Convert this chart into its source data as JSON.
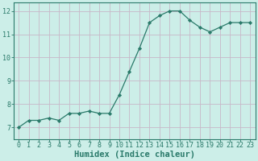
{
  "x": [
    0,
    1,
    2,
    3,
    4,
    5,
    6,
    7,
    8,
    9,
    10,
    11,
    12,
    13,
    14,
    15,
    16,
    17,
    18,
    19,
    20,
    21,
    22,
    23
  ],
  "y": [
    7.0,
    7.3,
    7.3,
    7.4,
    7.3,
    7.6,
    7.6,
    7.7,
    7.6,
    7.6,
    8.4,
    9.4,
    10.4,
    11.5,
    11.8,
    12.0,
    12.0,
    11.6,
    11.3,
    11.1,
    11.3,
    11.5,
    11.5,
    11.5
  ],
  "xlabel": "Humidex (Indice chaleur)",
  "ylim": [
    6.5,
    12.35
  ],
  "xlim": [
    -0.5,
    23.5
  ],
  "yticks": [
    7,
    8,
    9,
    10,
    11,
    12
  ],
  "xtick_labels": [
    "0",
    "1",
    "2",
    "3",
    "4",
    "5",
    "6",
    "7",
    "8",
    "9",
    "10",
    "11",
    "12",
    "13",
    "14",
    "15",
    "16",
    "17",
    "18",
    "19",
    "20",
    "21",
    "22",
    "23"
  ],
  "line_color": "#2a7a6a",
  "marker_color": "#2a7a6a",
  "bg_color": "#cceee8",
  "grid_color": "#c8b8c8",
  "xlabel_fontsize": 7.5,
  "tick_fontsize": 6.0,
  "spine_color": "#2a7a6a"
}
